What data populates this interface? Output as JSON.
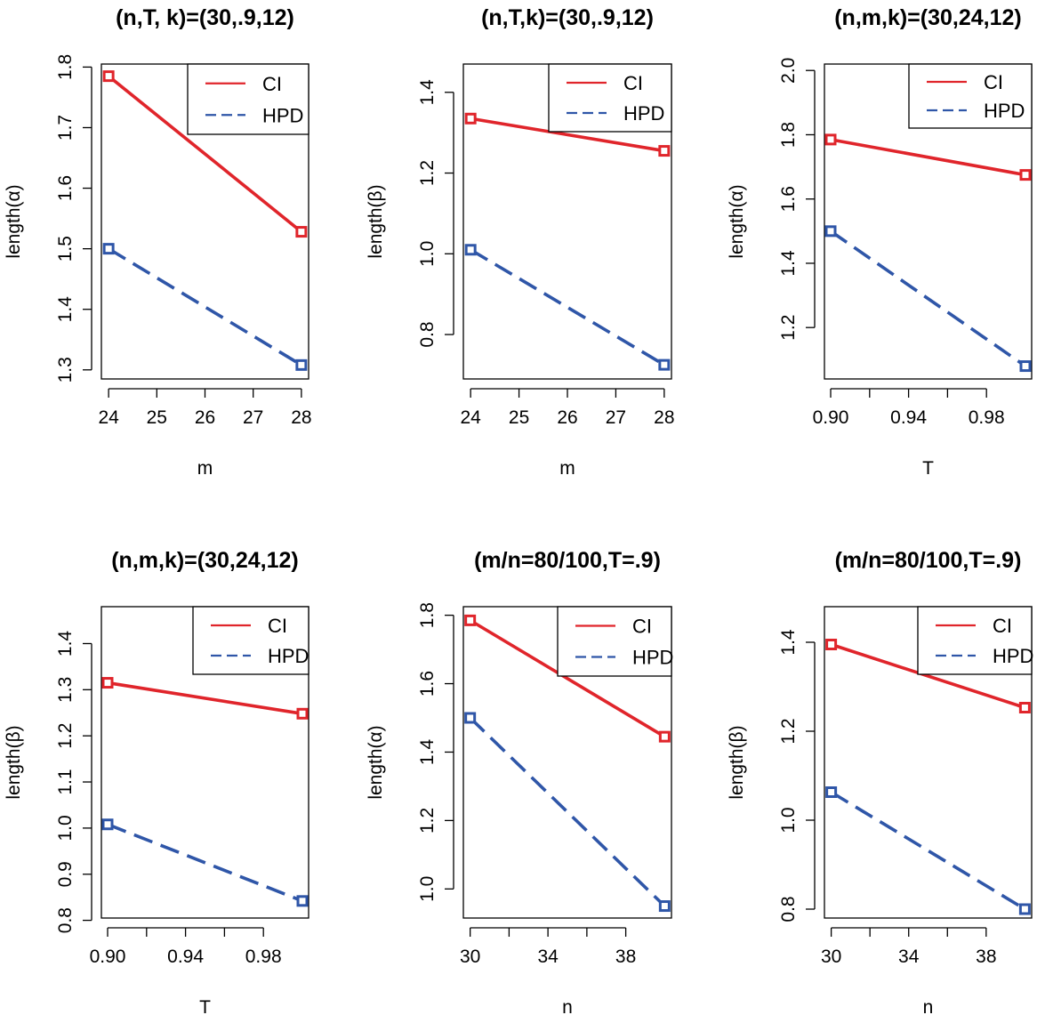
{
  "colors": {
    "ci": "#e0252b",
    "hpd": "#2f56a8",
    "axis": "#000000"
  },
  "chart_data": [
    {
      "type": "line",
      "title": "(n,T, k)=(30,.9,12)",
      "xlabel": "m",
      "ylabel": "length(α)",
      "xlim": [
        23.85,
        28.15
      ],
      "ylim": [
        1.285,
        1.805
      ],
      "x_ticks": [
        "24",
        "25",
        "26",
        "27",
        "28"
      ],
      "y_ticks": [
        "1.3",
        "1.4",
        "1.5",
        "1.6",
        "1.7",
        "1.8"
      ],
      "x": [
        24,
        28
      ],
      "series": [
        {
          "name": "CI",
          "values": [
            1.785,
            1.528
          ]
        },
        {
          "name": "HPD",
          "values": [
            1.5,
            1.308
          ]
        }
      ],
      "legend": "top-right"
    },
    {
      "type": "line",
      "title": "(n,T,k)=(30,.9,12)",
      "xlabel": "m",
      "ylabel": "length(β)",
      "xlim": [
        23.85,
        28.15
      ],
      "ylim": [
        0.69,
        1.47
      ],
      "x_ticks": [
        "24",
        "25",
        "26",
        "27",
        "28"
      ],
      "y_ticks": [
        "0.8",
        "1.0",
        "1.2",
        "1.4"
      ],
      "x": [
        24,
        28
      ],
      "series": [
        {
          "name": "CI",
          "values": [
            1.335,
            1.255
          ]
        },
        {
          "name": "HPD",
          "values": [
            1.01,
            0.725
          ]
        }
      ],
      "legend": "top-right"
    },
    {
      "type": "line",
      "title": "(n,m,k)=(30,24,12)",
      "xlabel": "T",
      "ylabel": "length(α)",
      "xlim": [
        0.8968,
        1.0032
      ],
      "ylim": [
        1.04,
        2.02
      ],
      "x_ticks": [
        "0.90",
        "0.94",
        "0.98"
      ],
      "y_ticks": [
        "1.2",
        "1.4",
        "1.6",
        "1.8",
        "2.0"
      ],
      "x": [
        0.9,
        1.0
      ],
      "series": [
        {
          "name": "CI",
          "values": [
            1.785,
            1.675
          ]
        },
        {
          "name": "HPD",
          "values": [
            1.5,
            1.08
          ]
        }
      ],
      "legend": "top-right"
    },
    {
      "type": "line",
      "title": "(n,m,k)=(30,24,12)",
      "xlabel": "T",
      "ylabel": "length(β)",
      "xlim": [
        0.8968,
        1.0032
      ],
      "ylim": [
        0.805,
        1.48
      ],
      "x_ticks": [
        "0.90",
        "0.94",
        "0.98"
      ],
      "y_ticks": [
        "0.8",
        "0.9",
        "1.0",
        "1.1",
        "1.2",
        "1.3",
        "1.4"
      ],
      "x": [
        0.9,
        1.0
      ],
      "series": [
        {
          "name": "CI",
          "values": [
            1.315,
            1.248
          ]
        },
        {
          "name": "HPD",
          "values": [
            1.008,
            0.842
          ]
        }
      ],
      "legend": "top-right"
    },
    {
      "type": "line",
      "title": "(m/n=80/100,T=.9)",
      "xlabel": "n",
      "ylabel": "length(α)",
      "xlim": [
        29.65,
        40.35
      ],
      "ylim": [
        0.915,
        1.825
      ],
      "x_ticks": [
        "30",
        "34",
        "38"
      ],
      "y_ticks": [
        "1.0",
        "1.2",
        "1.4",
        "1.6",
        "1.8"
      ],
      "x": [
        30,
        40
      ],
      "series": [
        {
          "name": "CI",
          "values": [
            1.785,
            1.445
          ]
        },
        {
          "name": "HPD",
          "values": [
            1.5,
            0.95
          ]
        }
      ],
      "legend": "top-right"
    },
    {
      "type": "line",
      "title": "(m/n=80/100,T=.9)",
      "xlabel": "n",
      "ylabel": "length(β)",
      "xlim": [
        29.65,
        40.35
      ],
      "ylim": [
        0.78,
        1.48
      ],
      "x_ticks": [
        "30",
        "34",
        "38"
      ],
      "y_ticks": [
        "0.8",
        "1.0",
        "1.2",
        "1.4"
      ],
      "x": [
        30,
        40
      ],
      "series": [
        {
          "name": "CI",
          "values": [
            1.395,
            1.253
          ]
        },
        {
          "name": "HPD",
          "values": [
            1.063,
            0.8
          ]
        }
      ],
      "legend": "top-right"
    }
  ]
}
